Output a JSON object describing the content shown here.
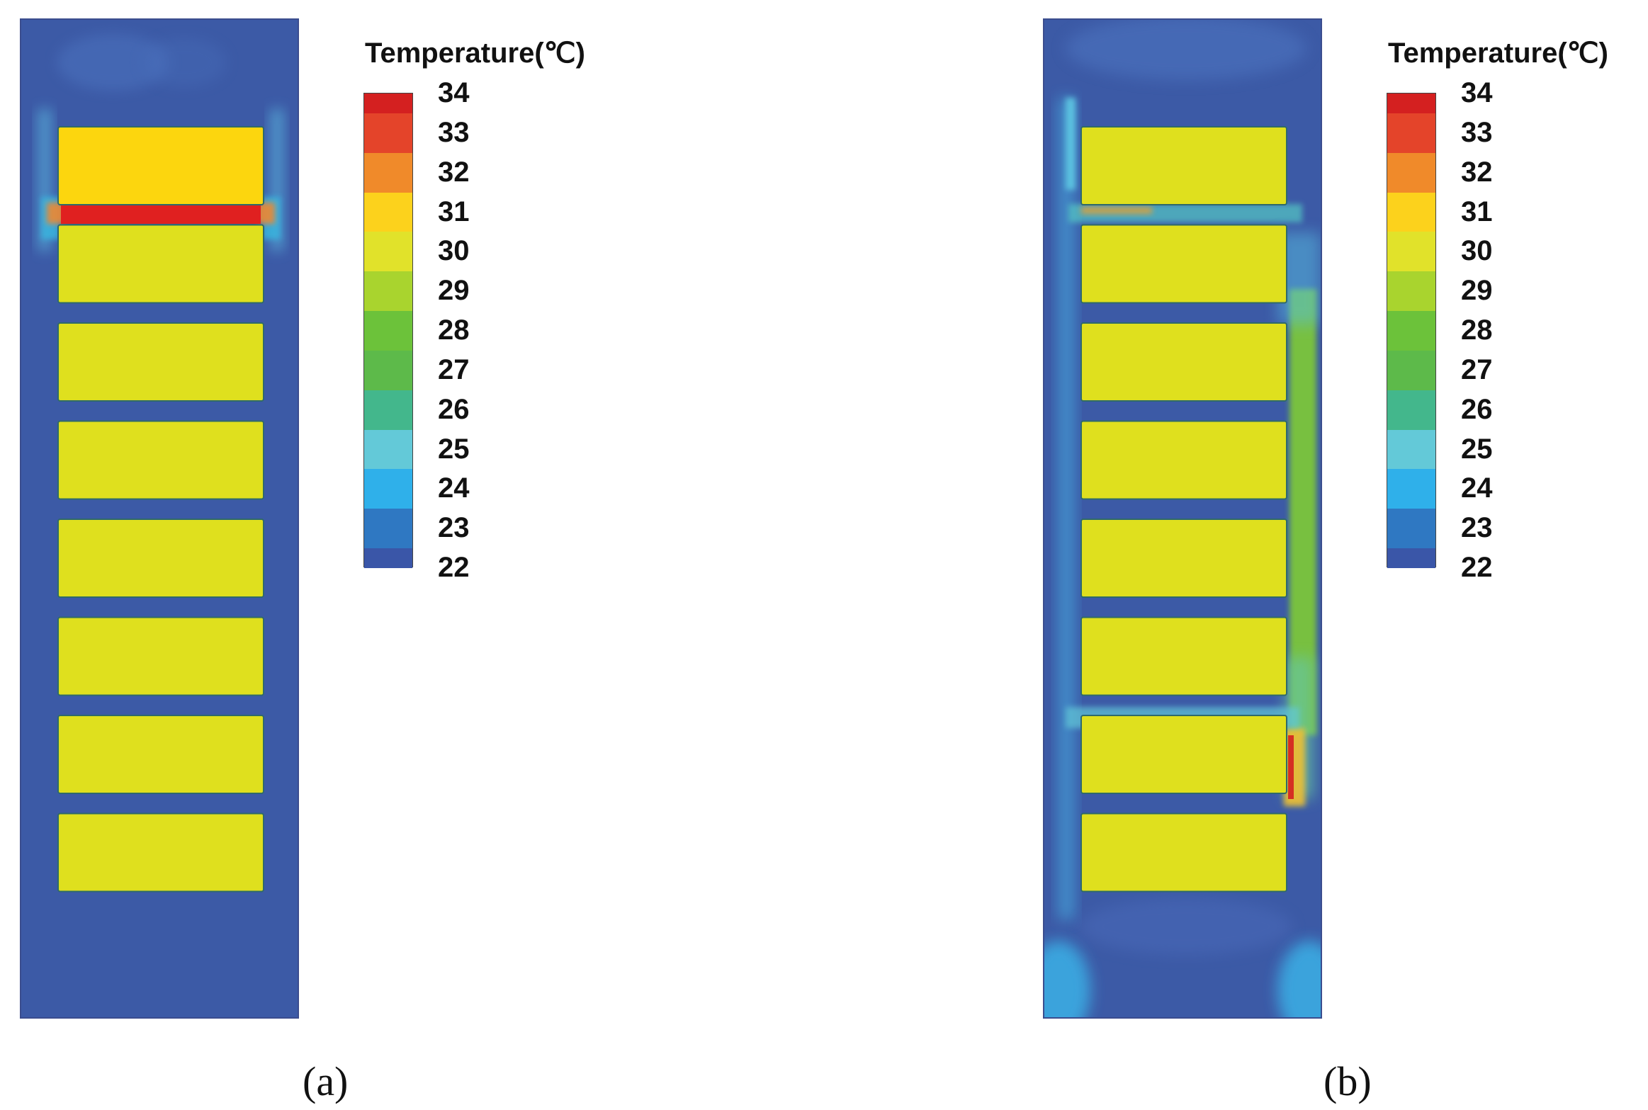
{
  "legend": {
    "title": "Temperature(℃)",
    "ticks": [
      "34",
      "33",
      "32",
      "31",
      "30",
      "29",
      "28",
      "27",
      "26",
      "25",
      "24",
      "23",
      "22"
    ],
    "range": [
      22,
      34
    ],
    "colors": [
      "#d42020",
      "#e4442a",
      "#f08a2a",
      "#fcd21c",
      "#e1e22a",
      "#a9d42e",
      "#6cc23a",
      "#5dba4a",
      "#43b78c",
      "#63c9d8",
      "#2fb0ea",
      "#2f78c2",
      "#3a56a8"
    ]
  },
  "panels": [
    {
      "caption": "(a)",
      "cells": [
        {
          "temp": 31.5,
          "color": "#fcd60e"
        },
        {
          "temp": 30.6,
          "color": "#dfe01e"
        },
        {
          "temp": 30.6,
          "color": "#dfe01e"
        },
        {
          "temp": 30.6,
          "color": "#dfe01e"
        },
        {
          "temp": 30.6,
          "color": "#dfe01e"
        },
        {
          "temp": 30.6,
          "color": "#dfe01e"
        },
        {
          "temp": 30.6,
          "color": "#dfe01e"
        },
        {
          "temp": 30.6,
          "color": "#dfe01e"
        }
      ]
    },
    {
      "caption": "(b)",
      "cells": [
        {
          "temp": 30.6,
          "color": "#dfe01e"
        },
        {
          "temp": 30.6,
          "color": "#dfe01e"
        },
        {
          "temp": 30.6,
          "color": "#dfe01e"
        },
        {
          "temp": 30.6,
          "color": "#dfe01e"
        },
        {
          "temp": 30.6,
          "color": "#dfe01e"
        },
        {
          "temp": 30.6,
          "color": "#dfe01e"
        },
        {
          "temp": 30.6,
          "color": "#dfe01e"
        },
        {
          "temp": 30.6,
          "color": "#dfe01e"
        }
      ]
    }
  ]
}
